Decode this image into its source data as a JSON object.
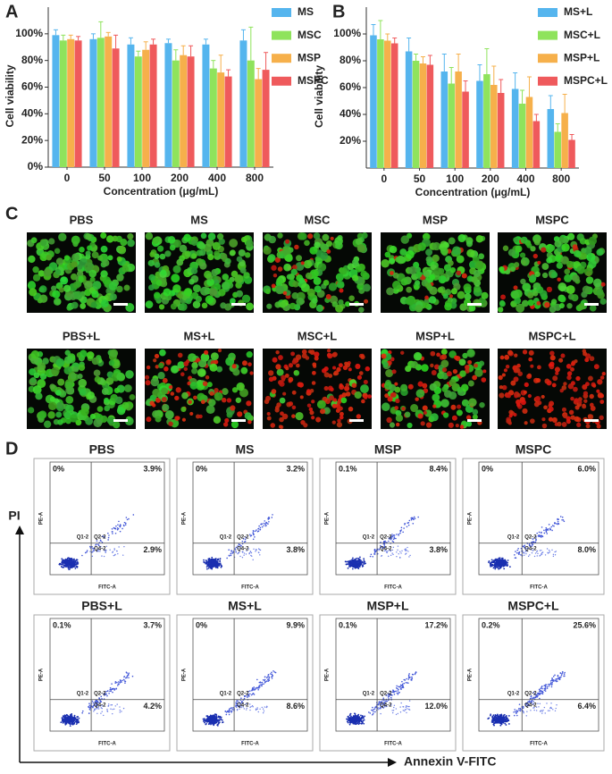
{
  "chart_data": [
    {
      "type": "bar",
      "label": "A",
      "categories": [
        "0",
        "50",
        "100",
        "200",
        "400",
        "800"
      ],
      "xlabel": "Concentration (μg/mL)",
      "ylabel": "Cell viability",
      "ylim": [
        0,
        120
      ],
      "yticks": [
        {
          "value": 0,
          "label": "0%"
        },
        {
          "value": 20,
          "label": "20%"
        },
        {
          "value": 40,
          "label": "40%"
        },
        {
          "value": 60,
          "label": "60%"
        },
        {
          "value": 80,
          "label": "80%"
        },
        {
          "value": 100,
          "label": "100%"
        }
      ],
      "grid": false,
      "legend": "upper right",
      "series": [
        {
          "name": "MS",
          "color": "#55b5ee",
          "values": [
            99,
            96,
            92,
            93,
            92,
            95
          ],
          "errors": [
            4,
            4,
            5,
            3,
            4,
            8
          ]
        },
        {
          "name": "MSC",
          "color": "#8fe35c",
          "values": [
            95,
            97,
            83,
            80,
            74,
            80
          ],
          "errors": [
            4,
            12,
            4,
            8,
            6,
            25
          ]
        },
        {
          "name": "MSP",
          "color": "#f6b04b",
          "values": [
            96,
            98,
            88,
            84,
            71,
            66
          ],
          "errors": [
            3,
            3,
            6,
            7,
            13,
            8
          ]
        },
        {
          "name": "MSPC",
          "color": "#ef5a5c",
          "values": [
            95,
            89,
            92,
            83,
            68,
            73
          ],
          "errors": [
            3,
            10,
            4,
            8,
            5,
            13
          ]
        }
      ]
    },
    {
      "type": "bar",
      "label": "B",
      "categories": [
        "0",
        "50",
        "100",
        "200",
        "400",
        "800"
      ],
      "xlabel": "Concentration (μg/mL)",
      "ylabel": "Cell viability",
      "ylim": [
        0,
        120
      ],
      "yticks": [
        {
          "value": 20,
          "label": "20%"
        },
        {
          "value": 40,
          "label": "40%"
        },
        {
          "value": 60,
          "label": "60%"
        },
        {
          "value": 80,
          "label": "80%"
        },
        {
          "value": 100,
          "label": "100%"
        }
      ],
      "grid": false,
      "legend": "upper right",
      "series": [
        {
          "name": "MS+L",
          "color": "#55b5ee",
          "values": [
            99,
            87,
            72,
            65,
            59,
            44
          ],
          "errors": [
            8,
            10,
            13,
            12,
            12,
            10
          ]
        },
        {
          "name": "MSC+L",
          "color": "#8fe35c",
          "values": [
            96,
            80,
            63,
            70,
            48,
            27
          ],
          "errors": [
            14,
            5,
            12,
            19,
            10,
            6
          ]
        },
        {
          "name": "MSP+L",
          "color": "#f6b04b",
          "values": [
            95,
            78,
            72,
            62,
            53,
            41
          ],
          "errors": [
            5,
            5,
            13,
            14,
            15,
            14
          ]
        },
        {
          "name": "MSPC+L",
          "color": "#ef5a5c",
          "values": [
            93,
            77,
            57,
            56,
            35,
            21
          ],
          "errors": [
            4,
            7,
            8,
            10,
            5,
            4
          ]
        }
      ]
    }
  ],
  "microscopy": {
    "label": "C",
    "images": [
      "PBS",
      "MS",
      "MSC",
      "MSP",
      "MSPC",
      "PBS+L",
      "MS+L",
      "MSC+L",
      "MSP+L",
      "MSPC+L"
    ]
  },
  "flow": {
    "label": "D",
    "x_label": "Annexin V-FITC",
    "y_label": "PI",
    "plot_x_axis": "FITC-A",
    "plot_y_axis": "PE-A",
    "gates": [
      "Q1-2",
      "Q2-2",
      "Q4-2"
    ],
    "plots": [
      {
        "title": "PBS",
        "q1": "0%",
        "q2": "3.9%",
        "q4": "2.9%"
      },
      {
        "title": "MS",
        "q1": "0%",
        "q2": "3.2%",
        "q4": "3.8%"
      },
      {
        "title": "MSP",
        "q1": "0.1%",
        "q2": "8.4%",
        "q4": "3.8%"
      },
      {
        "title": "MSPC",
        "q1": "0%",
        "q2": "6.0%",
        "q4": "8.0%"
      },
      {
        "title": "PBS+L",
        "q1": "0.1%",
        "q2": "3.7%",
        "q4": "4.2%"
      },
      {
        "title": "MS+L",
        "q1": "0%",
        "q2": "9.9%",
        "q4": "8.6%"
      },
      {
        "title": "MSP+L",
        "q1": "0.1%",
        "q2": "17.2%",
        "q4": "12.0%"
      },
      {
        "title": "MSPC+L",
        "q1": "0.2%",
        "q2": "25.6%",
        "q4": "6.4%"
      }
    ]
  }
}
